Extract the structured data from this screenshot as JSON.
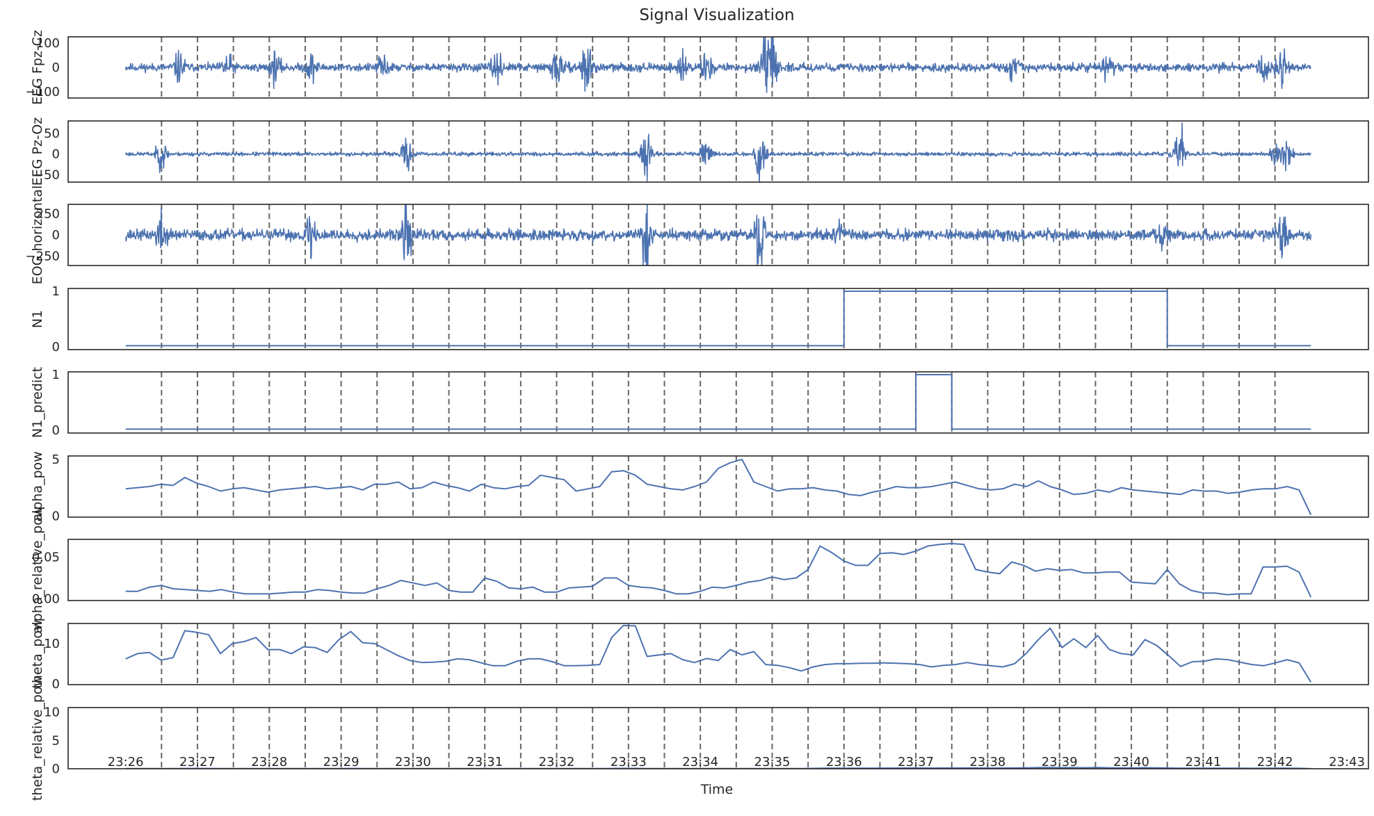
{
  "title": "Signal Visualization",
  "xlabel": "Time",
  "x_ticks": [
    "23:26",
    "23:27",
    "23:28",
    "23:29",
    "23:30",
    "23:31",
    "23:32",
    "23:33",
    "23:34",
    "23:35",
    "23:36",
    "23:37",
    "23:38",
    "23:39",
    "23:40",
    "23:41",
    "23:42",
    "23:43"
  ],
  "x_range": [
    "23:25:12",
    "23:43:18"
  ],
  "colors": {
    "line": "#4c72b0",
    "epoch_line": "#666666",
    "frame": "#262626",
    "text": "#262626"
  },
  "chart_data": [
    {
      "type": "line",
      "ylabel": "EEG Fpz-Cz",
      "ylim": [
        -125,
        125
      ],
      "yticks": [
        {
          "v": 100,
          "t": "100"
        },
        {
          "v": 0,
          "t": "0"
        },
        {
          "v": -100,
          "t": "−100"
        }
      ],
      "trace": {
        "kind": "noise",
        "base": 14,
        "seed": 11
      },
      "bursts": [
        {
          "t": "23:26:45",
          "a": 50
        },
        {
          "t": "23:27:25",
          "a": 45
        },
        {
          "t": "23:28:05",
          "a": 48
        },
        {
          "t": "23:28:35",
          "a": 45
        },
        {
          "t": "23:29:35",
          "a": 40
        },
        {
          "t": "23:31:10",
          "a": 45
        },
        {
          "t": "23:32:00",
          "a": 85
        },
        {
          "t": "23:32:25",
          "a": 110
        },
        {
          "t": "23:33:45",
          "a": 55
        },
        {
          "t": "23:34:05",
          "a": 55
        },
        {
          "t": "23:34:55",
          "a": 80
        },
        {
          "t": "23:35:00",
          "a": 100
        },
        {
          "t": "23:38:20",
          "a": 40
        },
        {
          "t": "23:39:40",
          "a": 45
        },
        {
          "t": "23:41:50",
          "a": 50
        },
        {
          "t": "23:42:05",
          "a": 55
        }
      ]
    },
    {
      "type": "line",
      "ylabel": "EEG Pz-Oz",
      "ylim": [
        -68,
        80
      ],
      "yticks": [
        {
          "v": 50,
          "t": "50"
        },
        {
          "v": 0,
          "t": "0"
        },
        {
          "v": -50,
          "t": "−50"
        }
      ],
      "trace": {
        "kind": "noise",
        "base": 4,
        "seed": 23
      },
      "bursts": [
        {
          "t": "23:26:30",
          "a": 30
        },
        {
          "t": "23:29:55",
          "a": 30
        },
        {
          "t": "23:33:15",
          "a": 40
        },
        {
          "t": "23:34:05",
          "a": 35
        },
        {
          "t": "23:34:50",
          "a": 60
        },
        {
          "t": "23:40:40",
          "a": 65
        },
        {
          "t": "23:42:00",
          "a": 25
        },
        {
          "t": "23:42:10",
          "a": 35
        }
      ]
    },
    {
      "type": "line",
      "ylabel": "EOG horizontal",
      "ylim": [
        -360,
        360
      ],
      "yticks": [
        {
          "v": 250,
          "t": "250"
        },
        {
          "v": 0,
          "t": "0"
        },
        {
          "v": -250,
          "t": "−250"
        }
      ],
      "trace": {
        "kind": "noise",
        "base": 55,
        "seed": 37
      },
      "bursts": [
        {
          "t": "23:26:30",
          "a": 200
        },
        {
          "t": "23:28:35",
          "a": 250
        },
        {
          "t": "23:29:55",
          "a": 300
        },
        {
          "t": "23:33:15",
          "a": 300
        },
        {
          "t": "23:34:50",
          "a": 320
        },
        {
          "t": "23:35:55",
          "a": 150
        },
        {
          "t": "23:40:25",
          "a": 180
        },
        {
          "t": "23:42:05",
          "a": 200
        }
      ]
    },
    {
      "type": "line",
      "ylabel": "N1",
      "ylim": [
        -0.05,
        1.05
      ],
      "yticks": [
        {
          "v": 1,
          "t": "1"
        },
        {
          "v": 0,
          "t": "0"
        }
      ],
      "trace": {
        "kind": "step",
        "base": 0.02,
        "segments": [
          {
            "from": "23:36:00",
            "to": "23:40:30",
            "v": 1
          }
        ]
      }
    },
    {
      "type": "line",
      "ylabel": "N1_predict",
      "ylim": [
        -0.05,
        1.05
      ],
      "yticks": [
        {
          "v": 1,
          "t": "1"
        },
        {
          "v": 0,
          "t": "0"
        }
      ],
      "trace": {
        "kind": "step",
        "base": 0.02,
        "segments": [
          {
            "from": "23:37:00",
            "to": "23:37:30",
            "v": 1
          }
        ]
      }
    },
    {
      "type": "line",
      "ylabel": "alpha_pow",
      "ylim": [
        -0.1,
        5.3
      ],
      "yticks": [
        {
          "v": 5,
          "t": "5"
        },
        {
          "v": 0,
          "t": "0"
        }
      ],
      "trace": {
        "kind": "series",
        "values": [
          2.4,
          2.5,
          2.6,
          2.8,
          2.7,
          3.4,
          2.9,
          2.6,
          2.2,
          2.4,
          2.5,
          2.3,
          2.1,
          2.3,
          2.4,
          2.5,
          2.6,
          2.4,
          2.5,
          2.6,
          2.3,
          2.8,
          2.8,
          3.0,
          2.4,
          2.5,
          3.0,
          2.7,
          2.5,
          2.2,
          2.8,
          2.5,
          2.4,
          2.6,
          2.7,
          3.6,
          3.4,
          3.2,
          2.2,
          2.4,
          2.6,
          3.9,
          4.0,
          3.6,
          2.8,
          2.6,
          2.4,
          2.3,
          2.6,
          3.0,
          4.2,
          4.7,
          5.0,
          3.0,
          2.6,
          2.2,
          2.4,
          2.4,
          2.5,
          2.3,
          2.2,
          1.9,
          1.8,
          2.1,
          2.3,
          2.6,
          2.5,
          2.5,
          2.6,
          2.8,
          3.0,
          2.7,
          2.4,
          2.3,
          2.4,
          2.8,
          2.6,
          3.1,
          2.6,
          2.3,
          1.9,
          2.0,
          2.3,
          2.1,
          2.5,
          2.3,
          2.2,
          2.1,
          2.0,
          1.9,
          2.3,
          2.2,
          2.2,
          2.0,
          2.1,
          2.3,
          2.4,
          2.4,
          2.6,
          2.3,
          0.1
        ]
      }
    },
    {
      "type": "line",
      "ylabel": "alpha_relative_pow",
      "ylim": [
        -0.002,
        0.071
      ],
      "yticks": [
        {
          "v": 0.05,
          "t": "0.05"
        },
        {
          "v": 0,
          "t": "0.00"
        }
      ],
      "trace": {
        "kind": "series",
        "values": [
          0.009,
          0.009,
          0.014,
          0.016,
          0.012,
          0.011,
          0.01,
          0.009,
          0.011,
          0.008,
          0.006,
          0.006,
          0.006,
          0.007,
          0.008,
          0.008,
          0.011,
          0.01,
          0.008,
          0.007,
          0.007,
          0.012,
          0.016,
          0.022,
          0.019,
          0.016,
          0.019,
          0.01,
          0.008,
          0.008,
          0.025,
          0.021,
          0.013,
          0.012,
          0.014,
          0.008,
          0.008,
          0.013,
          0.014,
          0.015,
          0.025,
          0.025,
          0.016,
          0.014,
          0.013,
          0.01,
          0.006,
          0.006,
          0.009,
          0.014,
          0.013,
          0.016,
          0.02,
          0.022,
          0.026,
          0.023,
          0.025,
          0.035,
          0.063,
          0.055,
          0.045,
          0.04,
          0.04,
          0.054,
          0.055,
          0.053,
          0.057,
          0.063,
          0.065,
          0.066,
          0.065,
          0.035,
          0.032,
          0.03,
          0.044,
          0.04,
          0.033,
          0.036,
          0.034,
          0.035,
          0.031,
          0.031,
          0.032,
          0.032,
          0.02,
          0.019,
          0.018,
          0.035,
          0.018,
          0.01,
          0.007,
          0.007,
          0.005,
          0.006,
          0.006,
          0.038,
          0.038,
          0.039,
          0.032,
          0.002
        ]
      }
    },
    {
      "type": "line",
      "ylabel": "theta_pow",
      "ylim": [
        -0.2,
        15.0
      ],
      "yticks": [
        {
          "v": 10,
          "t": "10"
        },
        {
          "v": 0,
          "t": "0"
        }
      ],
      "trace": {
        "kind": "series",
        "values": [
          6.2,
          7.5,
          7.8,
          5.9,
          6.5,
          13.2,
          12.8,
          12.2,
          7.5,
          10.0,
          10.5,
          11.5,
          8.5,
          8.5,
          7.5,
          9.2,
          9.0,
          7.8,
          11.0,
          13.0,
          10.2,
          10.0,
          8.5,
          7.0,
          5.8,
          5.3,
          5.4,
          5.6,
          6.2,
          6.0,
          5.2,
          4.5,
          4.5,
          5.6,
          6.2,
          6.2,
          5.5,
          4.5,
          4.5,
          4.6,
          4.8,
          11.5,
          14.5,
          14.4,
          6.8,
          7.2,
          7.5,
          6.0,
          5.3,
          6.3,
          5.8,
          8.5,
          7.2,
          8.0,
          4.8,
          4.6,
          4.0,
          3.2,
          4.2,
          4.8,
          5.0,
          5.0,
          5.1,
          5.1,
          5.2,
          5.1,
          5.0,
          4.8,
          4.2,
          4.6,
          4.8,
          5.3,
          4.8,
          4.5,
          4.2,
          5.0,
          7.6,
          11.0,
          13.8,
          9.0,
          11.2,
          9.0,
          12.0,
          8.5,
          7.5,
          7.2,
          11.0,
          9.5,
          7.0,
          4.3,
          5.5,
          5.6,
          6.2,
          6.0,
          5.4,
          4.8,
          4.5,
          5.2,
          6.0,
          5.2,
          0.4
        ]
      }
    },
    {
      "type": "line",
      "ylabel": "theta_relative_pow",
      "ylim": [
        0,
        10.8
      ],
      "yticks": [
        {
          "v": 10,
          "t": "10"
        },
        {
          "v": 5,
          "t": "5"
        },
        {
          "v": 0,
          "t": "0"
        }
      ],
      "trace": {
        "kind": "series",
        "values": [
          0.03,
          0.03,
          0.04,
          0.03,
          0.03,
          0.05,
          0.05,
          0.05,
          0.03,
          0.04,
          0.04,
          0.04,
          0.03,
          0.03,
          0.03,
          0.04,
          0.04,
          0.03,
          0.04,
          0.05,
          0.04,
          0.04,
          0.03,
          0.03,
          0.02,
          0.02,
          0.02,
          0.02,
          0.03,
          0.03,
          0.02,
          0.02,
          0.02,
          0.02,
          0.03,
          0.03,
          0.02,
          0.02,
          0.02,
          0.02,
          0.02,
          0.05,
          0.06,
          0.06,
          0.03,
          0.03,
          0.03,
          0.03,
          0.02,
          0.03,
          0.02,
          0.03,
          0.03,
          0.03,
          0.02,
          0.02,
          0.02,
          0.02,
          0.06,
          0.08,
          0.09,
          0.09,
          0.1,
          0.1,
          0.11,
          0.11,
          0.12,
          0.12,
          0.11,
          0.12,
          0.12,
          0.13,
          0.12,
          0.11,
          0.12,
          0.13,
          0.16,
          0.2,
          0.22,
          0.18,
          0.2,
          0.17,
          0.22,
          0.16,
          0.14,
          0.13,
          0.18,
          0.15,
          0.12,
          0.08,
          0.09,
          0.09,
          0.1,
          0.09,
          0.08,
          0.07,
          0.07,
          0.08,
          0.09,
          0.07,
          0.01
        ]
      }
    }
  ]
}
